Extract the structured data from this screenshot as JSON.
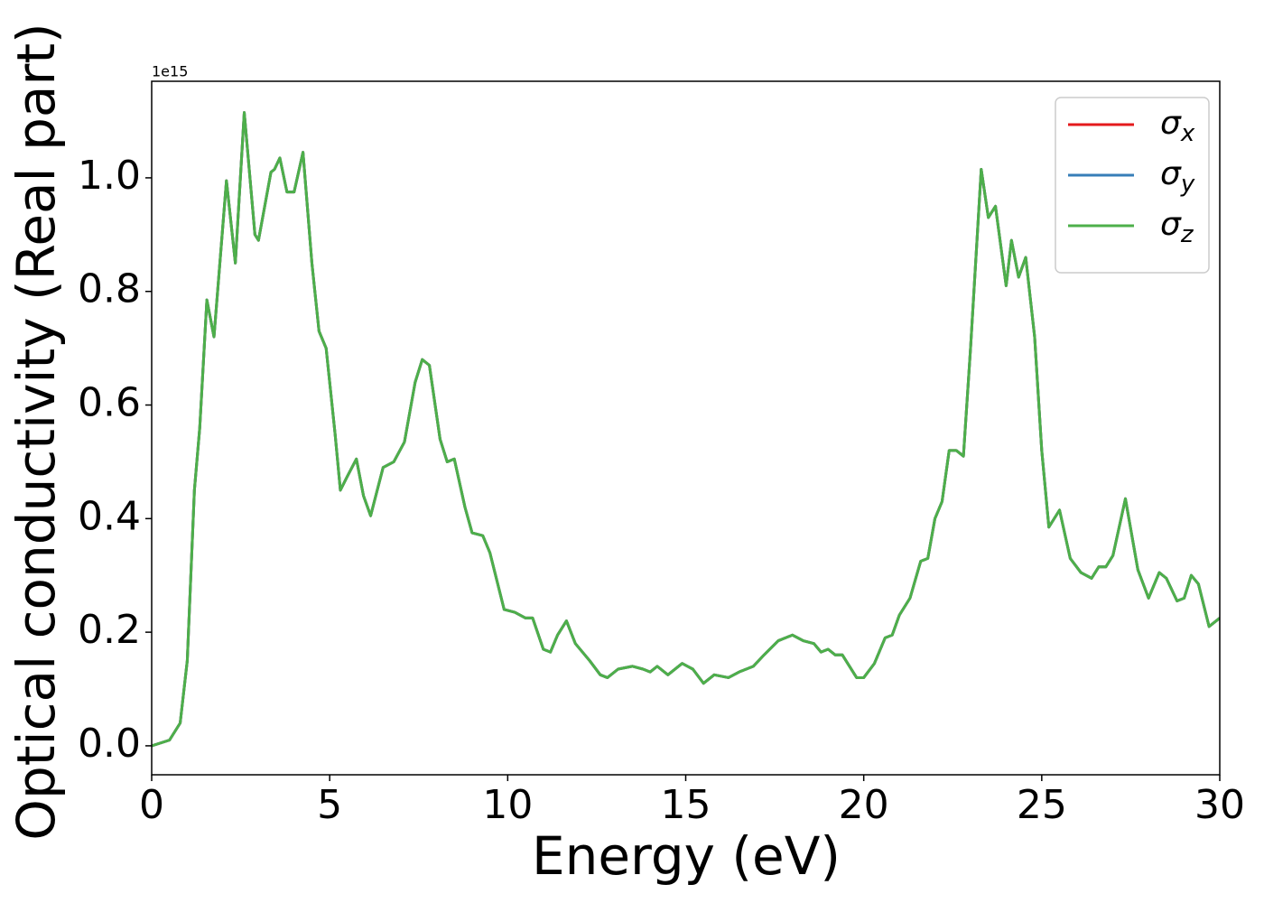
{
  "chart_data": {
    "type": "line",
    "xlabel": "Energy (eV)",
    "ylabel": "Optical conductivity (Real part)",
    "y_offset_label": "1e15",
    "x": [
      0,
      0.5,
      0.8,
      1.0,
      1.2,
      1.35,
      1.55,
      1.75,
      2.1,
      2.35,
      2.6,
      2.9,
      3.0,
      3.35,
      3.45,
      3.6,
      3.8,
      4.0,
      4.25,
      4.5,
      4.7,
      4.9,
      5.15,
      5.3,
      5.5,
      5.75,
      5.95,
      6.15,
      6.5,
      6.8,
      7.1,
      7.4,
      7.6,
      7.8,
      8.1,
      8.3,
      8.5,
      8.8,
      9.0,
      9.3,
      9.5,
      9.9,
      10.2,
      10.5,
      10.7,
      11.0,
      11.2,
      11.4,
      11.65,
      11.9,
      12.3,
      12.6,
      12.8,
      13.1,
      13.5,
      13.8,
      14.0,
      14.2,
      14.5,
      14.9,
      15.2,
      15.5,
      15.8,
      16.2,
      16.5,
      16.9,
      17.2,
      17.6,
      17.8,
      18.0,
      18.3,
      18.6,
      18.8,
      19.0,
      19.2,
      19.4,
      19.8,
      20.0,
      20.3,
      20.6,
      20.8,
      21.0,
      21.3,
      21.6,
      21.8,
      22.0,
      22.2,
      22.4,
      22.6,
      22.8,
      23.0,
      23.3,
      23.5,
      23.7,
      24.0,
      24.15,
      24.35,
      24.55,
      24.8,
      25.0,
      25.2,
      25.5,
      25.8,
      26.1,
      26.4,
      26.6,
      26.8,
      27.0,
      27.35,
      27.7,
      28.0,
      28.3,
      28.5,
      28.8,
      29.0,
      29.2,
      29.4,
      29.7,
      30.0
    ],
    "series": [
      {
        "name": "σx",
        "color": "#e41a1c",
        "values": [
          0.0,
          0.01,
          0.04,
          0.15,
          0.45,
          0.56,
          0.785,
          0.72,
          0.995,
          0.85,
          1.115,
          0.9,
          0.89,
          1.01,
          1.015,
          1.035,
          0.975,
          0.975,
          1.045,
          0.85,
          0.73,
          0.7,
          0.55,
          0.45,
          0.475,
          0.505,
          0.44,
          0.405,
          0.49,
          0.5,
          0.535,
          0.64,
          0.68,
          0.67,
          0.54,
          0.5,
          0.505,
          0.42,
          0.375,
          0.37,
          0.34,
          0.24,
          0.235,
          0.225,
          0.225,
          0.17,
          0.165,
          0.195,
          0.22,
          0.18,
          0.15,
          0.125,
          0.12,
          0.135,
          0.14,
          0.135,
          0.13,
          0.14,
          0.125,
          0.145,
          0.135,
          0.11,
          0.125,
          0.12,
          0.13,
          0.14,
          0.16,
          0.185,
          0.19,
          0.195,
          0.185,
          0.18,
          0.165,
          0.17,
          0.16,
          0.16,
          0.12,
          0.12,
          0.145,
          0.19,
          0.195,
          0.23,
          0.26,
          0.325,
          0.33,
          0.4,
          0.43,
          0.52,
          0.52,
          0.51,
          0.7,
          1.015,
          0.93,
          0.95,
          0.81,
          0.89,
          0.825,
          0.86,
          0.72,
          0.52,
          0.385,
          0.415,
          0.33,
          0.305,
          0.295,
          0.315,
          0.315,
          0.335,
          0.435,
          0.31,
          0.26,
          0.305,
          0.295,
          0.255,
          0.26,
          0.3,
          0.285,
          0.21,
          0.225
        ]
      },
      {
        "name": "σy",
        "color": "#377eb8",
        "values": [
          0.0,
          0.01,
          0.04,
          0.15,
          0.45,
          0.56,
          0.785,
          0.72,
          0.995,
          0.85,
          1.115,
          0.9,
          0.89,
          1.01,
          1.015,
          1.035,
          0.975,
          0.975,
          1.045,
          0.85,
          0.73,
          0.7,
          0.55,
          0.45,
          0.475,
          0.505,
          0.44,
          0.405,
          0.49,
          0.5,
          0.535,
          0.64,
          0.68,
          0.67,
          0.54,
          0.5,
          0.505,
          0.42,
          0.375,
          0.37,
          0.34,
          0.24,
          0.235,
          0.225,
          0.225,
          0.17,
          0.165,
          0.195,
          0.22,
          0.18,
          0.15,
          0.125,
          0.12,
          0.135,
          0.14,
          0.135,
          0.13,
          0.14,
          0.125,
          0.145,
          0.135,
          0.11,
          0.125,
          0.12,
          0.13,
          0.14,
          0.16,
          0.185,
          0.19,
          0.195,
          0.185,
          0.18,
          0.165,
          0.17,
          0.16,
          0.16,
          0.12,
          0.12,
          0.145,
          0.19,
          0.195,
          0.23,
          0.26,
          0.325,
          0.33,
          0.4,
          0.43,
          0.52,
          0.52,
          0.51,
          0.7,
          1.015,
          0.93,
          0.95,
          0.81,
          0.89,
          0.825,
          0.86,
          0.72,
          0.52,
          0.385,
          0.415,
          0.33,
          0.305,
          0.295,
          0.315,
          0.315,
          0.335,
          0.435,
          0.31,
          0.26,
          0.305,
          0.295,
          0.255,
          0.26,
          0.3,
          0.285,
          0.21,
          0.225
        ]
      },
      {
        "name": "σz",
        "color": "#4daf4a",
        "values": [
          0.0,
          0.01,
          0.04,
          0.15,
          0.45,
          0.56,
          0.785,
          0.72,
          0.995,
          0.85,
          1.115,
          0.9,
          0.89,
          1.01,
          1.015,
          1.035,
          0.975,
          0.975,
          1.045,
          0.85,
          0.73,
          0.7,
          0.55,
          0.45,
          0.475,
          0.505,
          0.44,
          0.405,
          0.49,
          0.5,
          0.535,
          0.64,
          0.68,
          0.67,
          0.54,
          0.5,
          0.505,
          0.42,
          0.375,
          0.37,
          0.34,
          0.24,
          0.235,
          0.225,
          0.225,
          0.17,
          0.165,
          0.195,
          0.22,
          0.18,
          0.15,
          0.125,
          0.12,
          0.135,
          0.14,
          0.135,
          0.13,
          0.14,
          0.125,
          0.145,
          0.135,
          0.11,
          0.125,
          0.12,
          0.13,
          0.14,
          0.16,
          0.185,
          0.19,
          0.195,
          0.185,
          0.18,
          0.165,
          0.17,
          0.16,
          0.16,
          0.12,
          0.12,
          0.145,
          0.19,
          0.195,
          0.23,
          0.26,
          0.325,
          0.33,
          0.4,
          0.43,
          0.52,
          0.52,
          0.51,
          0.7,
          1.015,
          0.93,
          0.95,
          0.81,
          0.89,
          0.825,
          0.86,
          0.72,
          0.52,
          0.385,
          0.415,
          0.33,
          0.305,
          0.295,
          0.315,
          0.315,
          0.335,
          0.435,
          0.31,
          0.26,
          0.305,
          0.295,
          0.255,
          0.26,
          0.3,
          0.285,
          0.21,
          0.225
        ]
      }
    ],
    "xlim": [
      0,
      30
    ],
    "xticks": [
      0,
      5,
      10,
      15,
      20,
      25,
      30
    ],
    "ylim": [
      -0.051,
      1.17
    ],
    "yticks": [
      {
        "value": 0,
        "label": "0.0"
      },
      0.2,
      0.4,
      0.6,
      0.8,
      {
        "value": 1,
        "label": "1.0"
      }
    ],
    "grid": false,
    "legend": "upper right"
  }
}
